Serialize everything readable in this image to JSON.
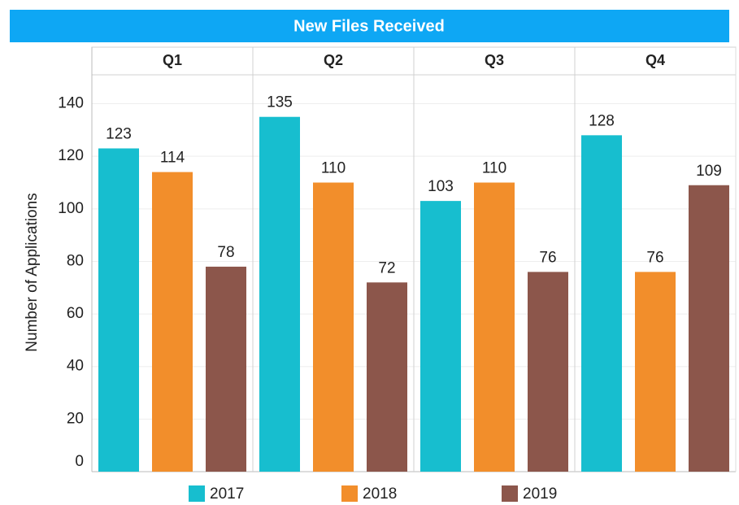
{
  "chart_data": {
    "type": "bar",
    "title": "New Files Received",
    "y_label": "Number of Applications",
    "categories": [
      "Q1",
      "Q2",
      "Q3",
      "Q4"
    ],
    "series": [
      {
        "name": "2017",
        "color": "#17becf",
        "values": [
          123,
          135,
          103,
          128
        ]
      },
      {
        "name": "2018",
        "color": "#f28e2b",
        "values": [
          114,
          110,
          110,
          76
        ]
      },
      {
        "name": "2019",
        "color": "#8c564b",
        "values": [
          78,
          72,
          76,
          109
        ]
      }
    ],
    "ylim": [
      0,
      151
    ],
    "yticks": [
      0,
      20,
      40,
      60,
      80,
      100,
      120,
      140
    ],
    "grid": true,
    "legend": "bottom"
  }
}
